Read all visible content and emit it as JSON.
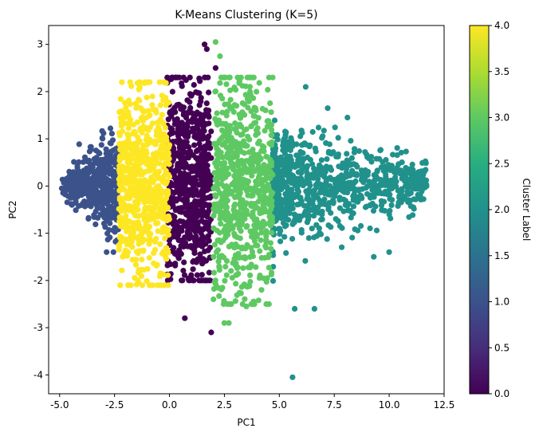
{
  "chart_data": {
    "type": "scatter",
    "title": "K-Means Clustering (K=5)",
    "xlabel": "PC1",
    "ylabel": "PC2",
    "xlim": [
      -5.5,
      12.5
    ],
    "ylim": [
      -4.4,
      3.4
    ],
    "x_ticks": [
      "-5.0",
      "-2.5",
      "0.0",
      "2.5",
      "5.0",
      "7.5",
      "10.0",
      "12.5"
    ],
    "y_ticks": [
      "-4",
      "-3",
      "-2",
      "-1",
      "0",
      "1",
      "2",
      "3"
    ],
    "grid": false,
    "colorbar": {
      "label": "Cluster Label",
      "range": [
        0,
        4
      ],
      "ticks": [
        "0.0",
        "0.5",
        "1.0",
        "1.5",
        "2.0",
        "2.5",
        "3.0",
        "3.5",
        "4.0"
      ],
      "colormap": "viridis"
    },
    "clusters": [
      {
        "label": 0,
        "color": "#440154",
        "x_range": [
          -0.1,
          1.9
        ],
        "y_range": [
          -2.0,
          2.3
        ]
      },
      {
        "label": 1,
        "color": "#3b528b",
        "x_range": [
          -4.9,
          -2.3
        ],
        "y_range": [
          -1.4,
          1.4
        ]
      },
      {
        "label": 2,
        "color": "#21918c",
        "x_range": [
          4.7,
          11.7
        ],
        "y_range": [
          -2.6,
          2.1
        ]
      },
      {
        "label": 3,
        "color": "#5ec962",
        "x_range": [
          2.0,
          4.7
        ],
        "y_range": [
          -2.5,
          2.3
        ]
      },
      {
        "label": 4,
        "color": "#fde725",
        "x_range": [
          -2.3,
          0.0
        ],
        "y_range": [
          -2.1,
          2.2
        ]
      }
    ],
    "outliers": [
      {
        "label": 0,
        "x": 1.6,
        "y": 3.0
      },
      {
        "label": 0,
        "x": 1.7,
        "y": 2.9
      },
      {
        "label": 0,
        "x": 2.1,
        "y": 2.5
      },
      {
        "label": 0,
        "x": 0.7,
        "y": -2.8
      },
      {
        "label": 0,
        "x": 1.9,
        "y": -3.1
      },
      {
        "label": 3,
        "x": 2.1,
        "y": 3.05
      },
      {
        "label": 3,
        "x": 2.3,
        "y": 2.75
      },
      {
        "label": 3,
        "x": 3.1,
        "y": 2.3
      },
      {
        "label": 3,
        "x": 2.5,
        "y": -2.9
      },
      {
        "label": 3,
        "x": 2.7,
        "y": -2.9
      },
      {
        "label": 3,
        "x": 3.5,
        "y": -2.55
      },
      {
        "label": 3,
        "x": 2.0,
        "y": -2.4
      },
      {
        "label": 2,
        "x": 5.6,
        "y": -4.05
      },
      {
        "label": 2,
        "x": 5.7,
        "y": -2.6
      },
      {
        "label": 2,
        "x": 6.6,
        "y": -2.6
      },
      {
        "label": 2,
        "x": 6.2,
        "y": 2.1
      },
      {
        "label": 2,
        "x": 7.2,
        "y": 1.65
      },
      {
        "label": 2,
        "x": 8.1,
        "y": 1.45
      },
      {
        "label": 2,
        "x": 9.3,
        "y": -1.5
      },
      {
        "label": 2,
        "x": 10.0,
        "y": -1.4
      },
      {
        "label": 2,
        "x": 11.6,
        "y": 0.3
      },
      {
        "label": 2,
        "x": 11.7,
        "y": 0.0
      },
      {
        "label": 4,
        "x": -2.3,
        "y": -1.35
      },
      {
        "label": 4,
        "x": -1.4,
        "y": -2.05
      },
      {
        "label": 4,
        "x": -0.9,
        "y": 2.2
      },
      {
        "label": 1,
        "x": -4.9,
        "y": -0.05
      }
    ]
  }
}
